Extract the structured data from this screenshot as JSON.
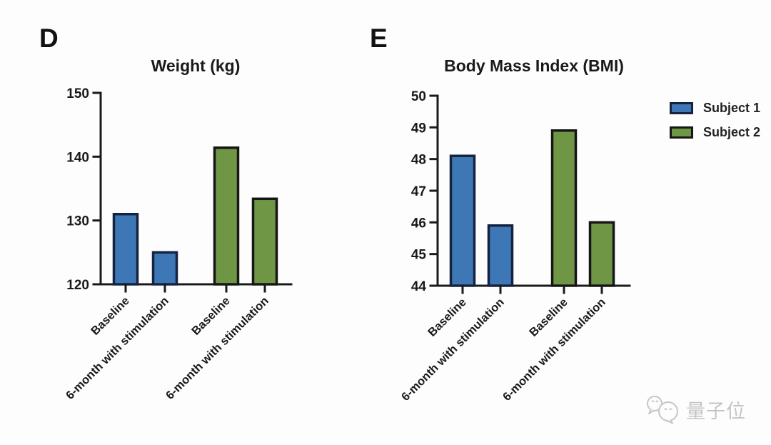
{
  "panels": [
    {
      "label": "D",
      "title": "Weight (kg)"
    },
    {
      "label": "E",
      "title": "Body Mass Index (BMI)"
    }
  ],
  "legend": {
    "items": [
      {
        "label": "Subject 1",
        "color": "#3e77b6",
        "border": "#16233f"
      },
      {
        "label": "Subject 2",
        "color": "#6e9645",
        "border": "#161616"
      }
    ]
  },
  "watermark": {
    "text": "量子位",
    "icon": "qbitai-chat-bubbles-logo",
    "color": "#c4c4c4"
  },
  "chart_data": [
    {
      "type": "bar",
      "panel": "D",
      "title": "Weight (kg)",
      "categories": [
        "Baseline",
        "6-month with stimulation",
        "Baseline",
        "6-month with stimulation"
      ],
      "series": [
        {
          "name": "Subject 1",
          "fill": "#3e77b6",
          "stroke": "#16233f"
        },
        {
          "name": "Subject 2",
          "fill": "#6e9645",
          "stroke": "#161616"
        }
      ],
      "bars": [
        {
          "series": "Subject 1",
          "category": "Baseline",
          "value": 131
        },
        {
          "series": "Subject 1",
          "category": "6-month with stimulation",
          "value": 125
        },
        {
          "series": "Subject 2",
          "category": "Baseline",
          "value": 141.4
        },
        {
          "series": "Subject 2",
          "category": "6-month with stimulation",
          "value": 133.4
        }
      ],
      "ylim": [
        120,
        150
      ],
      "yticks": [
        120,
        130,
        140,
        150
      ],
      "xlabel": "",
      "ylabel": "",
      "grid": false,
      "legend_position": "outside-right"
    },
    {
      "type": "bar",
      "panel": "E",
      "title": "Body Mass Index (BMI)",
      "categories": [
        "Baseline",
        "6-month with stimulation",
        "Baseline",
        "6-month with stimulation"
      ],
      "series": [
        {
          "name": "Subject 1",
          "fill": "#3e77b6",
          "stroke": "#16233f"
        },
        {
          "name": "Subject 2",
          "fill": "#6e9645",
          "stroke": "#161616"
        }
      ],
      "bars": [
        {
          "series": "Subject 1",
          "category": "Baseline",
          "value": 48.1
        },
        {
          "series": "Subject 1",
          "category": "6-month with stimulation",
          "value": 45.9
        },
        {
          "series": "Subject 2",
          "category": "Baseline",
          "value": 48.9
        },
        {
          "series": "Subject 2",
          "category": "6-month with stimulation",
          "value": 46.0
        }
      ],
      "ylim": [
        44,
        50
      ],
      "yticks": [
        44,
        45,
        46,
        47,
        48,
        49,
        50
      ],
      "xlabel": "",
      "ylabel": "",
      "grid": false,
      "legend_position": "outside-right"
    }
  ]
}
